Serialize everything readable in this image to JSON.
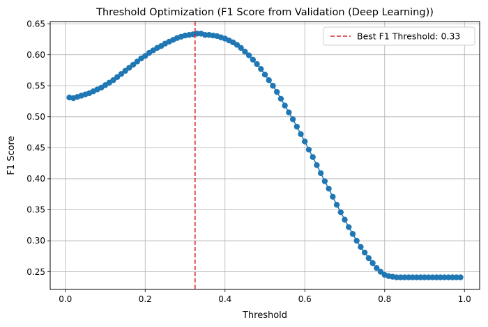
{
  "chart_data": {
    "type": "scatter",
    "title": "Threshold Optimization (F1 Score from Validation (Deep Learning))",
    "xlabel": "Threshold",
    "ylabel": "F1 Score",
    "xlim": [
      -0.038,
      1.038
    ],
    "ylim": [
      0.2215,
      0.6535
    ],
    "xticks": [
      "0.0",
      "0.2",
      "0.4",
      "0.6",
      "0.8",
      "1.0"
    ],
    "yticks": [
      "0.25",
      "0.30",
      "0.35",
      "0.40",
      "0.45",
      "0.50",
      "0.55",
      "0.60",
      "0.65"
    ],
    "grid": true,
    "legend_position": "top-right",
    "series": [
      {
        "color": "#1f77b4",
        "marker": "circle",
        "x": [
          0.01,
          0.02,
          0.03,
          0.04,
          0.05,
          0.06,
          0.07,
          0.08,
          0.09,
          0.1,
          0.11,
          0.12,
          0.13,
          0.14,
          0.15,
          0.16,
          0.17,
          0.18,
          0.19,
          0.2,
          0.21,
          0.22,
          0.23,
          0.24,
          0.25,
          0.26,
          0.27,
          0.28,
          0.29,
          0.3,
          0.31,
          0.32,
          0.33,
          0.34,
          0.35,
          0.36,
          0.37,
          0.38,
          0.39,
          0.4,
          0.41,
          0.42,
          0.43,
          0.44,
          0.45,
          0.46,
          0.47,
          0.48,
          0.49,
          0.5,
          0.51,
          0.52,
          0.53,
          0.54,
          0.55,
          0.56,
          0.57,
          0.58,
          0.59,
          0.6,
          0.61,
          0.62,
          0.63,
          0.64,
          0.65,
          0.66,
          0.67,
          0.68,
          0.69,
          0.7,
          0.71,
          0.72,
          0.73,
          0.74,
          0.75,
          0.76,
          0.77,
          0.78,
          0.79,
          0.8,
          0.81,
          0.82,
          0.83,
          0.84,
          0.85,
          0.86,
          0.87,
          0.88,
          0.89,
          0.9,
          0.91,
          0.92,
          0.93,
          0.94,
          0.95,
          0.96,
          0.97,
          0.98,
          0.99
        ],
        "y": [
          0.531,
          0.53,
          0.532,
          0.534,
          0.536,
          0.538,
          0.541,
          0.544,
          0.547,
          0.551,
          0.555,
          0.559,
          0.564,
          0.569,
          0.574,
          0.579,
          0.584,
          0.589,
          0.594,
          0.598,
          0.603,
          0.607,
          0.611,
          0.614,
          0.618,
          0.621,
          0.624,
          0.627,
          0.629,
          0.631,
          0.632,
          0.633,
          0.634,
          0.634,
          0.632,
          0.632,
          0.631,
          0.63,
          0.628,
          0.626,
          0.623,
          0.62,
          0.616,
          0.611,
          0.605,
          0.599,
          0.592,
          0.585,
          0.577,
          0.568,
          0.559,
          0.55,
          0.54,
          0.529,
          0.518,
          0.507,
          0.496,
          0.484,
          0.472,
          0.46,
          0.447,
          0.435,
          0.422,
          0.409,
          0.396,
          0.384,
          0.371,
          0.358,
          0.346,
          0.334,
          0.322,
          0.311,
          0.3,
          0.29,
          0.281,
          0.272,
          0.264,
          0.256,
          0.25,
          0.245,
          0.243,
          0.242,
          0.241,
          0.241,
          0.241,
          0.241,
          0.241,
          0.241,
          0.241,
          0.241,
          0.241,
          0.241,
          0.241,
          0.241,
          0.241,
          0.241,
          0.241,
          0.241,
          0.241
        ]
      }
    ],
    "reference_line": {
      "orientation": "vertical",
      "x": 0.325,
      "color": "#d62728",
      "style": "dashed",
      "label": "Best F1 Threshold: 0.33"
    }
  }
}
